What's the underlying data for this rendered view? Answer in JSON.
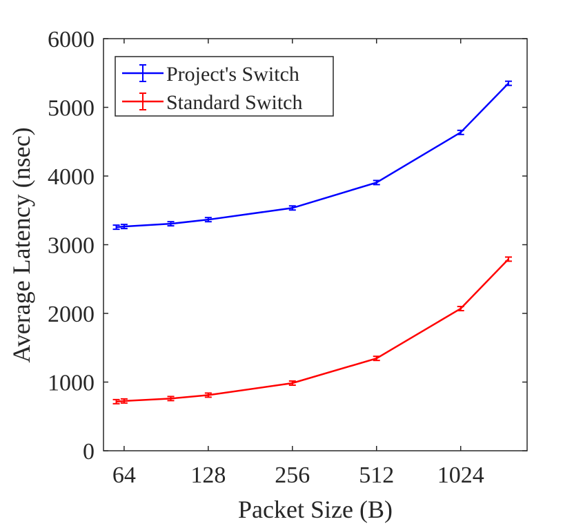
{
  "chart_data": {
    "type": "line",
    "title": "",
    "xlabel": "Packet Size (B)",
    "ylabel": "Average Latency (nsec)",
    "xscale": "log2",
    "x_ticks": [
      64,
      128,
      256,
      512,
      1024
    ],
    "x_tick_labels": [
      "64",
      "128",
      "256",
      "512",
      "1024"
    ],
    "xlim": [
      54,
      1770
    ],
    "ylim": [
      0,
      6000
    ],
    "y_ticks": [
      0,
      1000,
      2000,
      3000,
      4000,
      5000,
      6000
    ],
    "y_tick_labels": [
      "0",
      "1000",
      "2000",
      "3000",
      "4000",
      "5000",
      "6000"
    ],
    "grid": false,
    "legend_position": "top-left",
    "x": [
      60,
      64,
      94,
      128,
      256,
      512,
      1024,
      1518
    ],
    "series": [
      {
        "name": "Project's Switch",
        "color": "#0000ff",
        "values": [
          3255,
          3265,
          3305,
          3365,
          3535,
          3905,
          4635,
          5350
        ],
        "errors": [
          30,
          30,
          30,
          30,
          30,
          30,
          30,
          30
        ]
      },
      {
        "name": "Standard Switch",
        "color": "#ff0000",
        "values": [
          715,
          725,
          760,
          810,
          985,
          1345,
          2070,
          2790
        ],
        "errors": [
          30,
          30,
          30,
          30,
          30,
          30,
          30,
          30
        ]
      }
    ]
  }
}
